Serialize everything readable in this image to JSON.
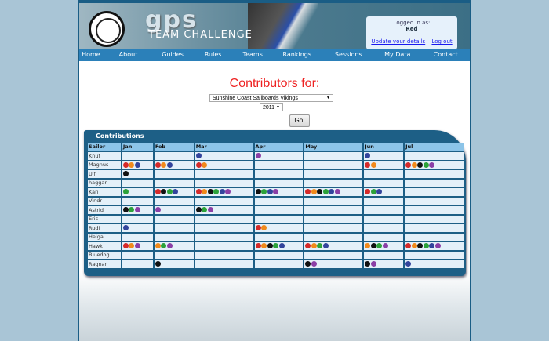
{
  "header": {
    "logo_text": "gps",
    "subtitle": "TEAM CHALLENGE",
    "logged_in_label": "Logged in as:",
    "user": "Red",
    "update_link": "Update your details",
    "logout_link": "Log out"
  },
  "nav": [
    "Home",
    "About",
    "Guides",
    "Rules",
    "Teams",
    "Rankings",
    "Sessions",
    "My Data",
    "Contact"
  ],
  "form": {
    "title": "Contributors for:",
    "team": "Sunshine Coast Sailboards Vikings",
    "year": "2011",
    "go": "Go!"
  },
  "badge_colors": {
    "r": "#d42a2a",
    "o": "#f08a1c",
    "k": "#111111",
    "g": "#2ca23a",
    "b": "#33449c",
    "p": "#8a3fa6"
  },
  "table": {
    "title": "Contributions",
    "headers": [
      "Sailor",
      "Jan",
      "Feb",
      "Mar",
      "Apr",
      "May",
      "Jun",
      "Jul"
    ],
    "rows": [
      {
        "name": "Knut",
        "cells": [
          "",
          "",
          "b",
          "p",
          "",
          "b",
          ""
        ]
      },
      {
        "name": "Magnus",
        "cells": [
          "rob",
          "rob",
          "ro",
          "",
          "",
          "ro",
          "rokgp"
        ]
      },
      {
        "name": "Ulf",
        "cells": [
          "k",
          "",
          "",
          "",
          "",
          "",
          ""
        ]
      },
      {
        "name": "haggar",
        "cells": [
          "",
          "",
          "",
          "",
          "",
          "",
          ""
        ]
      },
      {
        "name": "Kari",
        "cells": [
          "g",
          "rkgb",
          "rokgbp",
          "kgbp",
          "rokgbp",
          "rgb",
          ""
        ]
      },
      {
        "name": "Vindr",
        "cells": [
          "",
          "",
          "",
          "",
          "",
          "",
          ""
        ]
      },
      {
        "name": "Astrid",
        "cells": [
          "kgp",
          "p",
          "kgp",
          "",
          "",
          "",
          ""
        ]
      },
      {
        "name": "Eric",
        "cells": [
          "",
          "",
          "",
          "",
          "",
          "",
          ""
        ]
      },
      {
        "name": "Rudi",
        "cells": [
          "b",
          "",
          "",
          "ro",
          "",
          "",
          ""
        ]
      },
      {
        "name": "Helga",
        "cells": [
          "",
          "",
          "",
          "",
          "",
          "",
          ""
        ]
      },
      {
        "name": "Hawk",
        "cells": [
          "rop",
          "ogp",
          "",
          "rokgb",
          "rogb",
          "okgp",
          "rokgbp"
        ]
      },
      {
        "name": "Bluedog",
        "cells": [
          "",
          "",
          "",
          "",
          "",
          "",
          ""
        ]
      },
      {
        "name": "Ragnar",
        "cells": [
          "",
          "k",
          "",
          "",
          "kp",
          "kp",
          "b"
        ]
      }
    ]
  }
}
